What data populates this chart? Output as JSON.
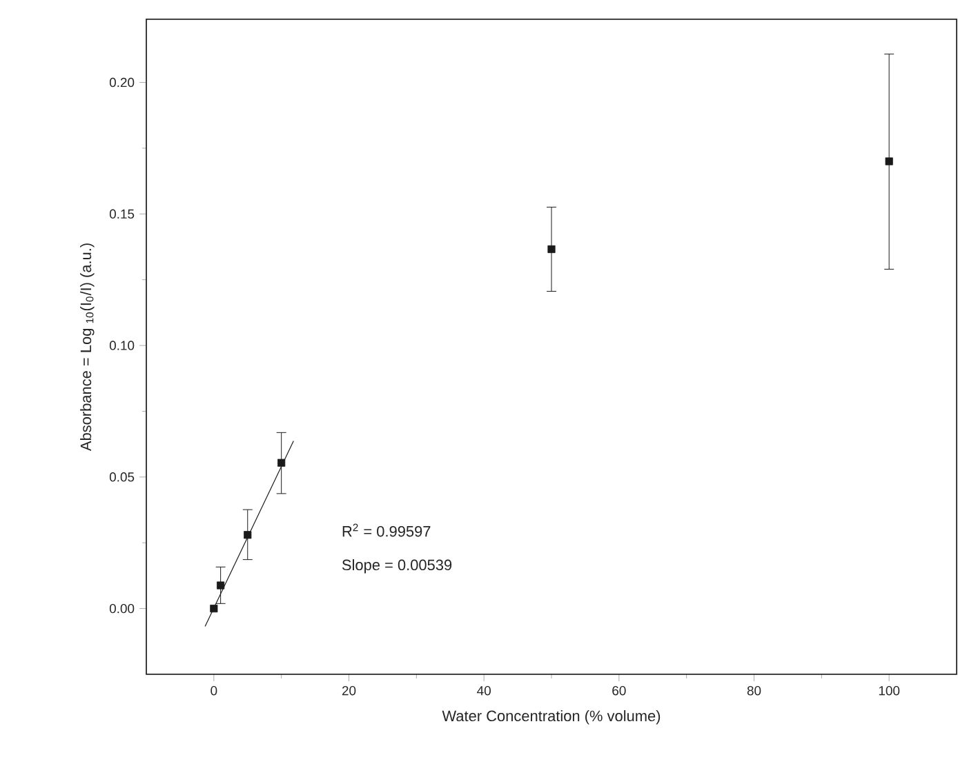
{
  "chart_data": {
    "type": "scatter",
    "xlabel": "Water Concentration (% volume)",
    "ylabel": "Absorbance = Log $_{10}$(I$_{0}$/I) (a.u.)",
    "xlim": [
      -10,
      110
    ],
    "ylim": [
      -0.025,
      0.224
    ],
    "xticks": [
      0,
      20,
      40,
      60,
      80,
      100
    ],
    "yticks": [
      {
        "value": 0,
        "label": "0.00"
      },
      {
        "value": 0.05,
        "label": "0.05"
      },
      {
        "value": 0.1,
        "label": "0.10"
      },
      {
        "value": 0.15,
        "label": "0.15"
      },
      {
        "value": 0.2,
        "label": "0.20"
      }
    ],
    "grid": false,
    "series": [
      {
        "marker": "square",
        "color": "#1a1a1a",
        "x": [
          0,
          1,
          5,
          10,
          50,
          100
        ],
        "values": [
          0.0,
          0.0088,
          0.028,
          0.0554,
          0.1366,
          0.17
        ],
        "errors": [
          null,
          [
            0.0019,
            0.0158
          ],
          [
            0.0186,
            0.0376
          ],
          [
            0.0437,
            0.0669
          ],
          [
            0.1206,
            0.1526
          ],
          [
            0.129,
            0.2108
          ]
        ]
      },
      {
        "type": "line",
        "marker": "none",
        "color": "#1a1a1a",
        "x": [
          -1.3,
          11.8
        ],
        "values": [
          -0.0068,
          0.0637
        ]
      }
    ],
    "annotations": [
      "R$^{2}$ = 0.99597",
      "Slope = 0.00539"
    ]
  }
}
